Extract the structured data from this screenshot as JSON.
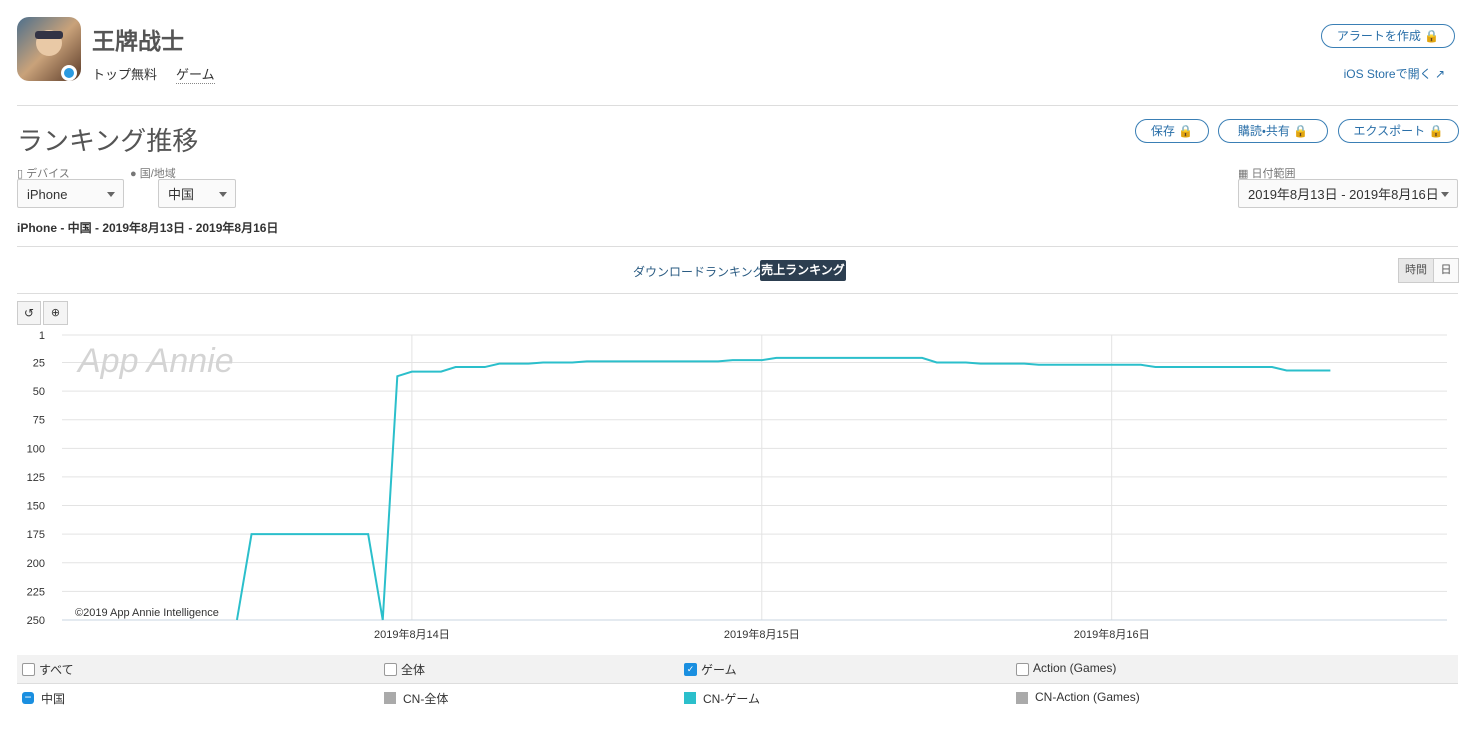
{
  "header": {
    "app_name": "王牌战士",
    "tags": [
      "トップ無料",
      "ゲーム"
    ],
    "alert_button": "アラートを作成",
    "store_link": "iOS Storeで開く"
  },
  "section": {
    "title": "ランキング推移",
    "buttons": [
      "保存",
      "購読・共有",
      "エクスポート"
    ]
  },
  "filters": {
    "device_label": "デバイス",
    "device": "iPhone",
    "country_label": "国/地域",
    "country": "中国",
    "date_label": "日付範囲",
    "date_range": "2019年8月13日 - 2019年8月16日",
    "summary": "iPhone - 中国 - 2019年8月13日 - 2019年8月16日"
  },
  "tabs": {
    "items": [
      "ダウンロードランキング",
      "売上ランキング"
    ],
    "active": 1,
    "granularity": [
      "時間",
      "日"
    ]
  },
  "chart_data": {
    "type": "line",
    "watermark": "App Annie",
    "credit": "©2019 App Annie Intelligence",
    "x": [
      0,
      1,
      2,
      3,
      4,
      5,
      6,
      7,
      8,
      9,
      10,
      11,
      12,
      13,
      14,
      15,
      16,
      17,
      18,
      19,
      20,
      21,
      22,
      23,
      24,
      25,
      26,
      27,
      28,
      29,
      30,
      31,
      32,
      33,
      34,
      35,
      36,
      37,
      38,
      39,
      40,
      41,
      42,
      43,
      44,
      45,
      46,
      47,
      48,
      49,
      50,
      51,
      52,
      53,
      54,
      55,
      56,
      57,
      58,
      59,
      60,
      61,
      62,
      63,
      64,
      65,
      66,
      67,
      68,
      69,
      70,
      71,
      72,
      73,
      74,
      75,
      76,
      77,
      78,
      79,
      80,
      81,
      82,
      83,
      84,
      85,
      86,
      87
    ],
    "series": [
      {
        "name": "CN-ゲーム",
        "color": "#2bbfcb",
        "values": [
          null,
          null,
          null,
          null,
          null,
          null,
          null,
          null,
          null,
          null,
          null,
          null,
          250,
          175,
          175,
          175,
          175,
          175,
          175,
          175,
          175,
          175,
          250,
          37,
          33,
          33,
          33,
          29,
          29,
          29,
          26,
          26,
          26,
          25,
          25,
          25,
          24,
          24,
          24,
          24,
          24,
          24,
          24,
          24,
          24,
          24,
          23,
          23,
          23,
          21,
          21,
          21,
          21,
          21,
          21,
          21,
          21,
          21,
          21,
          21,
          25,
          25,
          25,
          26,
          26,
          26,
          26,
          27,
          27,
          27,
          27,
          27,
          27,
          27,
          27,
          29,
          29,
          29,
          29,
          29,
          29,
          29,
          29,
          29,
          32,
          32,
          32,
          32
        ]
      }
    ],
    "xlim": [
      0,
      95
    ],
    "xticks": [
      {
        "value": 24,
        "label": "2019年8月14日"
      },
      {
        "value": 48,
        "label": "2019年8月15日"
      },
      {
        "value": 72,
        "label": "2019年8月16日"
      }
    ],
    "ylim": [
      250,
      1
    ],
    "yticks": [
      1,
      25,
      50,
      75,
      100,
      125,
      150,
      175,
      200,
      225,
      250
    ],
    "grid": true,
    "filters": [
      {
        "name": "すべて",
        "checked": false
      },
      {
        "name": "全体",
        "checked": false
      },
      {
        "name": "ゲーム",
        "checked": true
      },
      {
        "name": "Action (Games)",
        "checked": false
      }
    ],
    "legend_entries": [
      {
        "name": "中国",
        "color": "#1a8fe0"
      },
      {
        "name": "CN-全体",
        "color": "#aaaaaa"
      },
      {
        "name": "CN-ゲーム",
        "color": "#2bbfcb"
      },
      {
        "name": "CN-Action (Games)",
        "color": "#aaaaaa"
      }
    ]
  }
}
